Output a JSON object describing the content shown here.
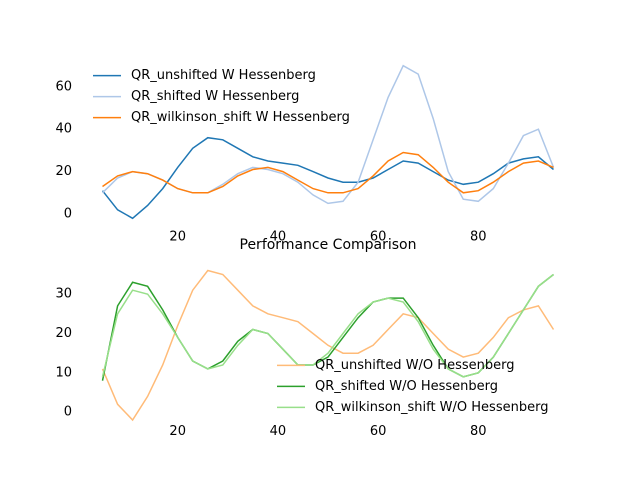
{
  "chart_data": [
    {
      "type": "line",
      "x": [
        5,
        8,
        11,
        14,
        17,
        20,
        23,
        26,
        29,
        32,
        35,
        38,
        41,
        44,
        47,
        50,
        53,
        56,
        59,
        62,
        65,
        68,
        71,
        74,
        77,
        80,
        83,
        86,
        89,
        92,
        95
      ],
      "series": [
        {
          "name": "QR_unshifted W Hessenberg",
          "color": "#1f77b4",
          "values": [
            11,
            2,
            -2,
            4,
            12,
            22,
            31,
            36,
            35,
            31,
            27,
            25,
            24,
            23,
            20,
            17,
            15,
            15,
            17,
            21,
            25,
            24,
            20,
            16,
            14,
            15,
            19,
            24,
            26,
            27,
            21
          ]
        },
        {
          "name": "QR_shifted W Hessenberg",
          "color": "#aec7e8",
          "values": [
            10,
            17,
            20,
            19,
            16,
            12,
            10,
            10,
            14,
            19,
            22,
            21,
            19,
            15,
            9,
            5,
            6,
            15,
            35,
            55,
            70,
            66,
            45,
            20,
            7,
            6,
            12,
            24,
            37,
            40,
            22
          ]
        },
        {
          "name": "QR_wilkinson_shift W Hessenberg",
          "color": "#ff7f0e",
          "values": [
            13,
            18,
            20,
            19,
            16,
            12,
            10,
            10,
            13,
            18,
            21,
            22,
            20,
            16,
            12,
            10,
            10,
            12,
            18,
            25,
            29,
            28,
            22,
            15,
            10,
            11,
            15,
            20,
            24,
            25,
            22
          ]
        }
      ],
      "xlim": [
        0.5,
        99.5
      ],
      "ylim": [
        -6.6,
        73.8
      ],
      "xticks": [
        20,
        40,
        60,
        80
      ],
      "yticks": [
        0,
        20,
        40,
        60
      ],
      "legend": "upper-left"
    },
    {
      "type": "line",
      "title": "Performance Comparison",
      "x": [
        5,
        8,
        11,
        14,
        17,
        20,
        23,
        26,
        29,
        32,
        35,
        38,
        41,
        44,
        47,
        50,
        53,
        56,
        59,
        62,
        65,
        68,
        71,
        74,
        77,
        80,
        83,
        86,
        89,
        92,
        95
      ],
      "series": [
        {
          "name": "QR_unshifted W/O Hessenberg",
          "color": "#ffbb78",
          "values": [
            11,
            2,
            -2,
            4,
            12,
            22,
            31,
            36,
            35,
            31,
            27,
            25,
            24,
            23,
            20,
            17,
            15,
            15,
            17,
            21,
            25,
            24,
            20,
            16,
            14,
            15,
            19,
            24,
            26,
            27,
            21
          ]
        },
        {
          "name": "QR_shifted W/O Hessenberg",
          "color": "#2ca02c",
          "values": [
            8,
            27,
            33,
            32,
            26,
            19,
            13,
            11,
            13,
            18,
            21,
            20,
            16,
            12,
            12,
            14,
            19,
            24,
            28,
            29,
            29,
            24,
            17,
            11,
            9,
            10,
            14,
            20,
            26,
            32,
            35
          ]
        },
        {
          "name": "QR_wilkinson_shift W/O Hessenberg",
          "color": "#98df8a",
          "values": [
            9,
            25,
            31,
            30,
            25,
            19,
            13,
            11,
            12,
            17,
            21,
            20,
            16,
            12,
            12,
            15,
            20,
            25,
            28,
            29,
            28,
            23,
            16,
            11,
            9,
            10,
            14,
            20,
            26,
            32,
            35
          ]
        }
      ],
      "xlim": [
        0.5,
        99.5
      ],
      "ylim": [
        -2.6,
        40.2
      ],
      "xticks": [
        20,
        40,
        60,
        80
      ],
      "yticks": [
        0,
        10,
        20,
        30
      ],
      "legend": "lower-right"
    }
  ]
}
